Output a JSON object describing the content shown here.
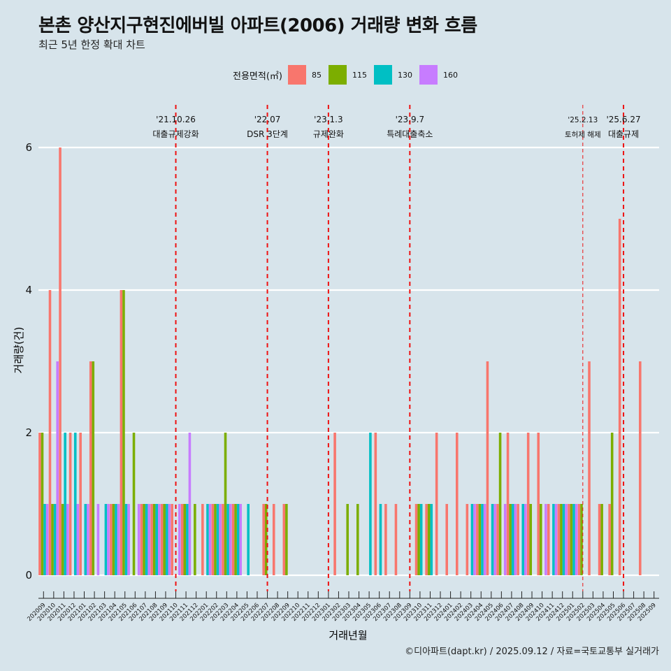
{
  "title": "본촌 양산지구현진에버빌 아파트(2006) 거래량 변화 흐름",
  "subtitle": "최근 5년 한정 확대 차트",
  "caption": "©디아파트(dapt.kr) / 2025.09.12 / 자료=국토교통부 실거래가",
  "legend": {
    "title": "전용면적(㎡)",
    "items": [
      {
        "label": "85",
        "color": "#F8766D"
      },
      {
        "label": "115",
        "color": "#7CAE00"
      },
      {
        "label": "130",
        "color": "#00BFC4"
      },
      {
        "label": "160",
        "color": "#C77CFF"
      }
    ]
  },
  "chart_data": {
    "type": "bar",
    "xlabel": "거래년월",
    "ylabel": "거래량(건)",
    "ylim": [
      0,
      6
    ],
    "yticks": [
      0,
      2,
      4,
      6
    ],
    "grid": true,
    "categories": [
      "202009",
      "202010",
      "202011",
      "202012",
      "202101",
      "202102",
      "202103",
      "202104",
      "202105",
      "202106",
      "202107",
      "202108",
      "202109",
      "202110",
      "202111",
      "202112",
      "202201",
      "202202",
      "202203",
      "202204",
      "202205",
      "202206",
      "202207",
      "202208",
      "202209",
      "202210",
      "202211",
      "202212",
      "202301",
      "202302",
      "202303",
      "202304",
      "202305",
      "202306",
      "202307",
      "202308",
      "202309",
      "202310",
      "202311",
      "202312",
      "202401",
      "202402",
      "202403",
      "202404",
      "202405",
      "202406",
      "202407",
      "202408",
      "202409",
      "202410",
      "202411",
      "202412",
      "202501",
      "202502",
      "202503",
      "202504",
      "202505",
      "202506",
      "202507",
      "202508",
      "202509"
    ],
    "series": [
      {
        "name": "85",
        "values": [
          2,
          4,
          6,
          2,
          2,
          3,
          0,
          1,
          4,
          0,
          1,
          1,
          1,
          1,
          1,
          0,
          1,
          1,
          1,
          1,
          0,
          0,
          1,
          1,
          1,
          0,
          0,
          0,
          0,
          2,
          0,
          0,
          0,
          2,
          1,
          1,
          0,
          1,
          1,
          2,
          1,
          2,
          1,
          1,
          3,
          1,
          2,
          1,
          2,
          2,
          1,
          1,
          1,
          1,
          3,
          1,
          1,
          5,
          0,
          3,
          0
        ]
      },
      {
        "name": "115",
        "values": [
          2,
          1,
          1,
          0,
          0,
          3,
          0,
          1,
          4,
          2,
          1,
          1,
          1,
          0,
          1,
          1,
          0,
          1,
          2,
          1,
          0,
          0,
          1,
          0,
          1,
          0,
          0,
          0,
          0,
          0,
          1,
          1,
          0,
          0,
          0,
          0,
          0,
          1,
          1,
          0,
          0,
          0,
          0,
          1,
          0,
          2,
          1,
          0,
          1,
          1,
          0,
          1,
          1,
          1,
          0,
          1,
          2,
          0,
          0,
          0,
          0
        ]
      },
      {
        "name": "130",
        "values": [
          1,
          1,
          2,
          2,
          1,
          0,
          1,
          1,
          1,
          0,
          1,
          1,
          1,
          0,
          1,
          0,
          1,
          1,
          1,
          1,
          1,
          0,
          0,
          0,
          0,
          0,
          0,
          0,
          0,
          0,
          0,
          0,
          2,
          1,
          0,
          0,
          0,
          1,
          1,
          0,
          0,
          0,
          1,
          1,
          1,
          0,
          1,
          1,
          0,
          0,
          1,
          1,
          1,
          0,
          0,
          0,
          0,
          0,
          0,
          0,
          0
        ]
      },
      {
        "name": "160",
        "values": [
          1,
          3,
          1,
          1,
          1,
          1,
          1,
          1,
          1,
          1,
          1,
          1,
          1,
          1,
          2,
          0,
          1,
          1,
          1,
          1,
          0,
          0,
          0,
          0,
          0,
          0,
          0,
          0,
          0,
          0,
          0,
          0,
          0,
          0,
          0,
          0,
          0,
          0,
          0,
          0,
          0,
          0,
          1,
          1,
          1,
          1,
          1,
          1,
          0,
          1,
          1,
          1,
          1,
          0,
          0,
          0,
          0,
          0,
          0,
          0,
          0
        ]
      }
    ],
    "annotations": [
      {
        "at": "202110",
        "date": "'21.10.26",
        "text": "대출규제강화",
        "style": "bold"
      },
      {
        "at": "202207",
        "date": "'22.07",
        "text": "DSR 3단계",
        "style": "bold"
      },
      {
        "at": "202301",
        "date": "'23.1.3",
        "text": "규제완화",
        "style": "bold"
      },
      {
        "at": "202309",
        "date": "'23.9.7",
        "text": "특례대출축소",
        "style": "bold"
      },
      {
        "at": "202502",
        "date": "'25.2.13",
        "text": "토허제 해제",
        "style": "thin"
      },
      {
        "at": "202506",
        "date": "'25.6.27",
        "text": "대출규제",
        "style": "bold"
      }
    ]
  }
}
